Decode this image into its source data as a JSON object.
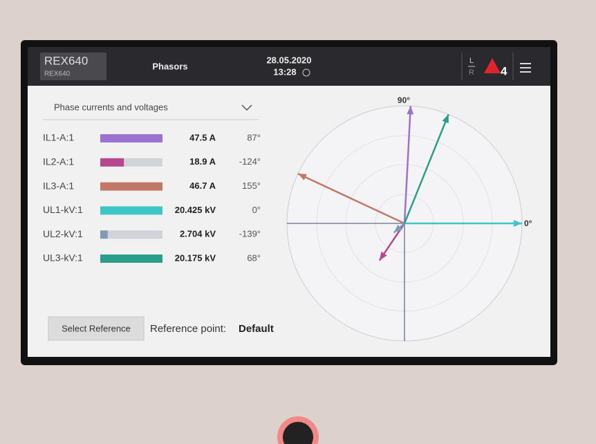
{
  "header": {
    "device": "REX640",
    "device_sub": "REX640",
    "title": "Phasors",
    "date": "28.05.2020",
    "time": "13:28",
    "local": "L",
    "remote": "R",
    "alarm_count": "4"
  },
  "selector": "Phase currents and voltages",
  "rows": [
    {
      "name": "IL1-A:1",
      "value": "47.5 A",
      "angle": "87°",
      "magnitude": 100,
      "color": "#9b72cf"
    },
    {
      "name": "IL2-A:1",
      "value": "18.9 A",
      "angle": "-124°",
      "magnitude": 38,
      "color": "#b8468f"
    },
    {
      "name": "IL3-A:1",
      "value": "46.7 A",
      "angle": "155°",
      "magnitude": 100,
      "color": "#c27866"
    },
    {
      "name": "UL1-kV:1",
      "value": "20.425 kV",
      "angle": "0°",
      "magnitude": 100,
      "color": "#3cc6c8"
    },
    {
      "name": "UL2-kV:1",
      "value": "2.704 kV",
      "angle": "-139°",
      "magnitude": 12,
      "color": "#7f9cb6"
    },
    {
      "name": "UL3-kV:1",
      "value": "20.175 kV",
      "angle": "68°",
      "magnitude": 100,
      "color": "#2a9e8a"
    }
  ],
  "reference": {
    "button": "Select Reference",
    "label": "Reference point:",
    "value": "Default"
  },
  "diagram": {
    "label_90": "90°",
    "label_0": "0°"
  }
}
